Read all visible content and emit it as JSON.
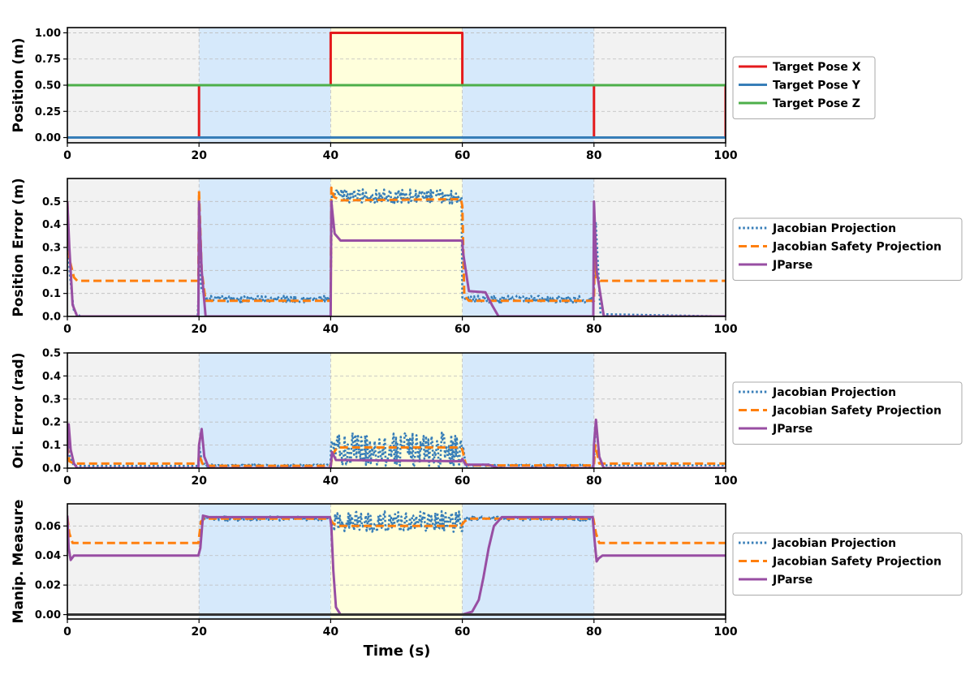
{
  "colors": {
    "target_x": "#e41a1c",
    "target_y": "#377eb8",
    "target_z": "#4daf4a",
    "jacobian_projection": "#377eb8",
    "jacobian_safety_projection": "#ff7f0e",
    "jparse": "#984ea3",
    "band_gray": "#f2f2f2",
    "band_blue": "#d6e9fb",
    "band_yellow": "#ffffdc"
  },
  "chart_data": [
    {
      "type": "line",
      "title": "",
      "xlabel": "",
      "ylabel": "Position (m)",
      "xlim": [
        0,
        100
      ],
      "ylim": [
        -0.05,
        1.05
      ],
      "x_ticks": [
        "0",
        "20",
        "40",
        "60",
        "80",
        "100"
      ],
      "y_ticks": [
        "0.00",
        "0.25",
        "0.50",
        "0.75",
        "1.00"
      ],
      "y_tick_values": [
        0,
        0.25,
        0.5,
        0.75,
        1.0
      ],
      "grid": true,
      "legend_position": "right",
      "background_bands": [
        {
          "from": 0,
          "to": 20,
          "color": "gray"
        },
        {
          "from": 20,
          "to": 40,
          "color": "blue"
        },
        {
          "from": 40,
          "to": 60,
          "color": "yellow"
        },
        {
          "from": 60,
          "to": 80,
          "color": "blue"
        },
        {
          "from": 80,
          "to": 100,
          "color": "gray"
        }
      ],
      "series": [
        {
          "name": "Target Pose X",
          "color_key": "target_x",
          "style": "solid",
          "x": [
            0,
            20,
            20,
            40,
            40,
            60,
            60,
            80,
            80,
            100,
            100
          ],
          "y": [
            0,
            0,
            0.5,
            0.5,
            1.0,
            1.0,
            0.5,
            0.5,
            0,
            0,
            0.5
          ]
        },
        {
          "name": "Target Pose Y",
          "color_key": "target_y",
          "style": "solid",
          "x": [
            0,
            100
          ],
          "y": [
            0,
            0
          ]
        },
        {
          "name": "Target Pose Z",
          "color_key": "target_z",
          "style": "solid",
          "x": [
            0,
            100
          ],
          "y": [
            0.5,
            0.5
          ]
        }
      ]
    },
    {
      "type": "line",
      "title": "",
      "xlabel": "",
      "ylabel": "Position Error (m)",
      "xlim": [
        0,
        100
      ],
      "ylim": [
        0,
        0.6
      ],
      "x_ticks": [
        "0",
        "20",
        "40",
        "60",
        "80",
        "100"
      ],
      "y_ticks": [
        "0.0",
        "0.1",
        "0.2",
        "0.3",
        "0.4",
        "0.5"
      ],
      "y_tick_values": [
        0,
        0.1,
        0.2,
        0.3,
        0.4,
        0.5
      ],
      "grid": true,
      "legend_position": "right",
      "background_bands": [
        {
          "from": 0,
          "to": 20,
          "color": "gray"
        },
        {
          "from": 20,
          "to": 40,
          "color": "blue"
        },
        {
          "from": 40,
          "to": 60,
          "color": "yellow"
        },
        {
          "from": 60,
          "to": 80,
          "color": "blue"
        },
        {
          "from": 80,
          "to": 100,
          "color": "gray"
        }
      ],
      "series": [
        {
          "name": "Jacobian Projection",
          "color_key": "jacobian_projection",
          "style": "dotted",
          "x": [
            0,
            0.3,
            1,
            2,
            19.9,
            20,
            20.3,
            21,
            40,
            40.2,
            41,
            59.9,
            60,
            60.5,
            80,
            80.2,
            81,
            99.9,
            100
          ],
          "y": [
            0.5,
            0.2,
            0.02,
            0,
            0,
            0.5,
            0.12,
            0.075,
            0.075,
            0.53,
            0.525,
            0.52,
            0.09,
            0.075,
            0.075,
            0.45,
            0.01,
            0,
            0
          ],
          "noise": [
            {
              "from": 20.5,
              "to": 40,
              "amplitude": 0.015
            },
            {
              "from": 40.3,
              "to": 60,
              "amplitude": 0.03
            },
            {
              "from": 60.5,
              "to": 80,
              "amplitude": 0.015
            }
          ]
        },
        {
          "name": "Jacobian Safety Projection",
          "color_key": "jacobian_safety_projection",
          "style": "dashed",
          "x": [
            0,
            0.3,
            1,
            1.5,
            19.9,
            20,
            20.4,
            21,
            40,
            40.1,
            40.5,
            41.5,
            59.8,
            60,
            60.3,
            61,
            80,
            80.1,
            80.4,
            81,
            99.9,
            100
          ],
          "y": [
            0.5,
            0.25,
            0.17,
            0.155,
            0.155,
            0.545,
            0.2,
            0.068,
            0.068,
            0.56,
            0.52,
            0.505,
            0.51,
            0.48,
            0.09,
            0.068,
            0.068,
            0.25,
            0.17,
            0.155,
            0.155,
            0.155
          ]
        },
        {
          "name": "JParse",
          "color_key": "jparse",
          "style": "solid",
          "x": [
            0,
            0.3,
            0.8,
            1.5,
            19.9,
            20,
            20.4,
            21,
            40,
            40.1,
            40.6,
            41.5,
            60,
            60.1,
            61,
            63.5,
            64.5,
            65.5,
            79.9,
            80,
            80.4,
            81.5,
            100
          ],
          "y": [
            0.5,
            0.3,
            0.05,
            0,
            0,
            0.5,
            0.2,
            0,
            0,
            0.5,
            0.36,
            0.33,
            0.33,
            0.28,
            0.11,
            0.105,
            0.05,
            0,
            0,
            0.5,
            0.2,
            0,
            0
          ]
        }
      ]
    },
    {
      "type": "line",
      "title": "",
      "xlabel": "",
      "ylabel": "Ori. Error (rad)",
      "xlim": [
        0,
        100
      ],
      "ylim": [
        0,
        0.5
      ],
      "x_ticks": [
        "0",
        "20",
        "40",
        "60",
        "80",
        "100"
      ],
      "y_ticks": [
        "0.0",
        "0.1",
        "0.2",
        "0.3",
        "0.4",
        "0.5"
      ],
      "y_tick_values": [
        0,
        0.1,
        0.2,
        0.3,
        0.4,
        0.5
      ],
      "grid": true,
      "legend_position": "right",
      "background_bands": [
        {
          "from": 0,
          "to": 20,
          "color": "gray"
        },
        {
          "from": 20,
          "to": 40,
          "color": "blue"
        },
        {
          "from": 40,
          "to": 60,
          "color": "yellow"
        },
        {
          "from": 60,
          "to": 80,
          "color": "blue"
        },
        {
          "from": 80,
          "to": 100,
          "color": "gray"
        }
      ],
      "series": [
        {
          "name": "Jacobian Projection",
          "color_key": "jacobian_projection",
          "style": "dotted",
          "x": [
            0,
            0.3,
            1,
            19.9,
            20,
            20.4,
            21,
            40,
            40.1,
            40.5,
            59.9,
            60,
            60.5,
            80,
            80.2,
            81,
            100
          ],
          "y": [
            0.15,
            0.05,
            0.01,
            0.01,
            0.1,
            0.03,
            0.012,
            0.012,
            0.13,
            0.08,
            0.08,
            0.12,
            0.012,
            0.012,
            0.2,
            0.012,
            0.012
          ],
          "noise": [
            {
              "from": 20.5,
              "to": 40,
              "amplitude": 0.004
            },
            {
              "from": 40.5,
              "to": 60,
              "amplitude": 0.075
            },
            {
              "from": 60.5,
              "to": 80,
              "amplitude": 0.004
            }
          ]
        },
        {
          "name": "Jacobian Safety Projection",
          "color_key": "jacobian_safety_projection",
          "style": "dashed",
          "x": [
            0,
            0.3,
            1,
            19.9,
            20,
            20.5,
            21,
            40,
            40.3,
            41,
            59.8,
            60,
            60.5,
            61,
            80,
            80.2,
            80.8,
            100
          ],
          "y": [
            0.1,
            0.03,
            0.02,
            0.02,
            0.06,
            0.02,
            0.01,
            0.01,
            0.06,
            0.09,
            0.09,
            0.08,
            0.02,
            0.012,
            0.012,
            0.1,
            0.02,
            0.02
          ]
        },
        {
          "name": "JParse",
          "color_key": "jparse",
          "style": "solid",
          "x": [
            0,
            0.2,
            0.5,
            1,
            1.5,
            19.9,
            20,
            20.4,
            20.8,
            21.5,
            40,
            40.2,
            40.8,
            59.8,
            60,
            60.5,
            64,
            65.5,
            79.9,
            80,
            80.3,
            80.8,
            81.5,
            100
          ],
          "y": [
            0.05,
            0.19,
            0.08,
            0.02,
            0,
            0,
            0.1,
            0.17,
            0.05,
            0,
            0,
            0.07,
            0.035,
            0.03,
            0.04,
            0.015,
            0.015,
            0,
            0,
            0.1,
            0.21,
            0.05,
            0,
            0
          ]
        }
      ]
    },
    {
      "type": "line",
      "title": "",
      "xlabel": "Time (s)",
      "ylabel": "Manip. Measure",
      "xlim": [
        0,
        100
      ],
      "ylim": [
        -0.003,
        0.075
      ],
      "x_ticks": [
        "0",
        "20",
        "40",
        "60",
        "80",
        "100"
      ],
      "y_ticks": [
        "0.00",
        "0.02",
        "0.04",
        "0.06"
      ],
      "y_tick_values": [
        0,
        0.02,
        0.04,
        0.06
      ],
      "grid": true,
      "legend_position": "right",
      "background_bands": [
        {
          "from": 0,
          "to": 20,
          "color": "gray"
        },
        {
          "from": 20,
          "to": 40,
          "color": "blue"
        },
        {
          "from": 40,
          "to": 60,
          "color": "yellow"
        },
        {
          "from": 60,
          "to": 80,
          "color": "blue"
        },
        {
          "from": 80,
          "to": 100,
          "color": "gray"
        }
      ],
      "series": [
        {
          "name": "Jacobian Projection",
          "color_key": "jacobian_projection",
          "style": "dotted",
          "x": [
            20.5,
            40,
            40.1,
            40.5,
            59.9,
            60,
            60.5,
            80
          ],
          "y": [
            0.065,
            0.065,
            0.06,
            0.063,
            0.063,
            0.063,
            0.065,
            0.065
          ],
          "noise": [
            {
              "from": 20.5,
              "to": 40,
              "amplitude": 0.0015
            },
            {
              "from": 40.5,
              "to": 60,
              "amplitude": 0.007
            },
            {
              "from": 60.5,
              "to": 80,
              "amplitude": 0.0015
            }
          ]
        },
        {
          "name": "Jacobian Safety Projection",
          "color_key": "jacobian_safety_projection",
          "style": "dashed",
          "x": [
            0,
            0.3,
            0.8,
            19.9,
            20.3,
            20.8,
            39.9,
            40.3,
            41,
            59.8,
            60.3,
            61,
            79.9,
            80.3,
            80.8,
            100
          ],
          "y": [
            0.066,
            0.055,
            0.0485,
            0.0485,
            0.063,
            0.065,
            0.065,
            0.062,
            0.06,
            0.06,
            0.063,
            0.065,
            0.065,
            0.055,
            0.0485,
            0.0485
          ]
        },
        {
          "name": "JParse",
          "color_key": "jparse",
          "style": "solid",
          "x": [
            0,
            0.2,
            0.5,
            1,
            19.9,
            20.2,
            20.6,
            21.5,
            39.9,
            40.1,
            40.4,
            40.8,
            41.5,
            60,
            61.5,
            62.5,
            63.2,
            64,
            64.8,
            66,
            79.8,
            80.1,
            80.4,
            80.7,
            81.3,
            100
          ],
          "y": [
            0.067,
            0.045,
            0.037,
            0.04,
            0.04,
            0.045,
            0.067,
            0.066,
            0.066,
            0.06,
            0.03,
            0.005,
            0,
            0,
            0.002,
            0.01,
            0.025,
            0.045,
            0.06,
            0.066,
            0.066,
            0.05,
            0.036,
            0.038,
            0.04,
            0.04
          ]
        },
        {
          "name": "Zero baseline",
          "color_key": "baseline",
          "style": "solid",
          "legend": false,
          "x": [
            0,
            100
          ],
          "y": [
            0,
            0
          ]
        }
      ]
    }
  ]
}
